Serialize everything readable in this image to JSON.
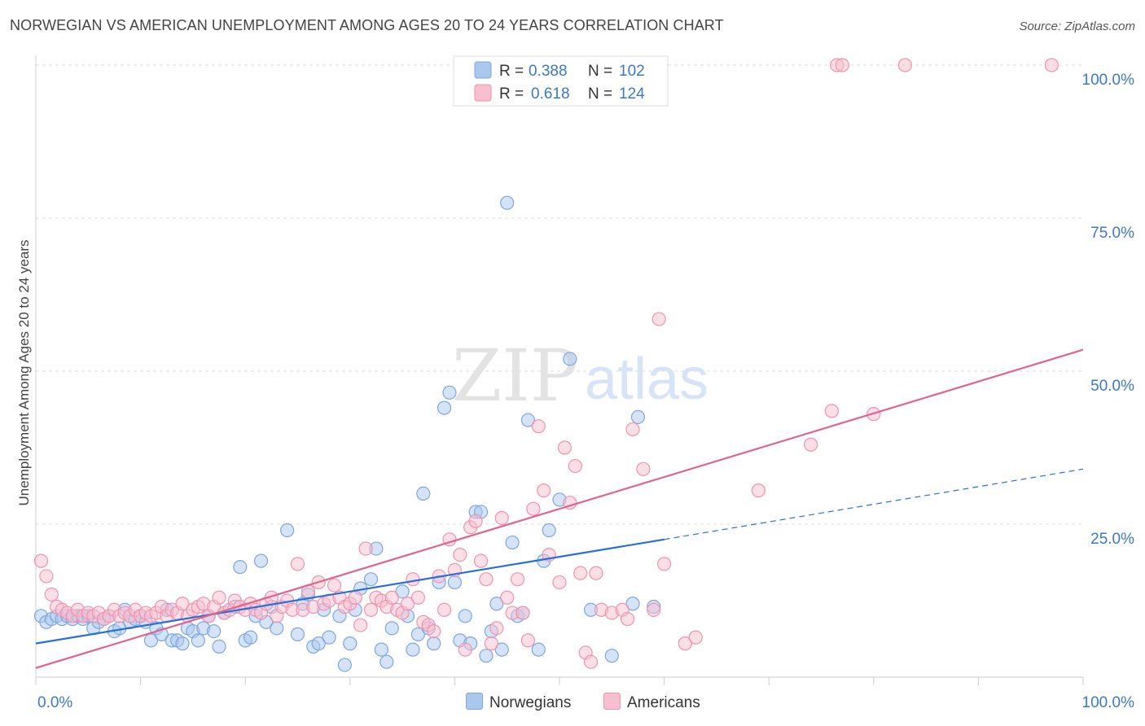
{
  "title": "NORWEGIAN VS AMERICAN UNEMPLOYMENT AMONG AGES 20 TO 24 YEARS CORRELATION CHART",
  "source": "Source: ZipAtlas.com",
  "watermark": {
    "zip": "ZIP",
    "atlas": "atlas"
  },
  "colors": {
    "norwegian_fill": "#aac8ee",
    "norwegian_stroke": "#7fa7dc",
    "norwegian_line": "#2a6fd6",
    "american_fill": "#f7bfd0",
    "american_stroke": "#ee93b0",
    "american_line": "#e0648e",
    "tick_label": "#3b78c9",
    "grid": "#dddddd"
  },
  "stats": {
    "norwegians": {
      "r_label": "R =",
      "r_value": "0.388",
      "n_label": "N =",
      "n_value": "102"
    },
    "americans": {
      "r_label": "R =",
      "r_value": "0.618",
      "n_label": "N =",
      "n_value": "124"
    }
  },
  "chart_data": {
    "type": "scatter",
    "title": "NORWEGIAN VS AMERICAN UNEMPLOYMENT AMONG AGES 20 TO 24 YEARS CORRELATION CHART",
    "xlabel": "",
    "ylabel": "Unemployment Among Ages 20 to 24 years",
    "xlim": [
      0,
      100
    ],
    "ylim": [
      0,
      102
    ],
    "x_tick_labels": [
      "0.0%",
      "100.0%"
    ],
    "y_ticks": [
      25,
      50,
      75,
      100
    ],
    "y_tick_labels": [
      "25.0%",
      "50.0%",
      "75.0%",
      "100.0%"
    ],
    "grid": true,
    "legend_position": "bottom",
    "series": [
      {
        "name": "Norwegians",
        "r": 0.388,
        "n": 102,
        "trend": {
          "x0": 0,
          "y0": 5.5,
          "x1": 60,
          "y1": 22.5,
          "dashed_to_x": 100,
          "dashed_to_y": 34
        },
        "points": [
          [
            0.5,
            10
          ],
          [
            1,
            9
          ],
          [
            1.5,
            9.5
          ],
          [
            2,
            10
          ],
          [
            2.5,
            9.5
          ],
          [
            3,
            10
          ],
          [
            3.5,
            9.5
          ],
          [
            4,
            10
          ],
          [
            4.5,
            9.5
          ],
          [
            5,
            10
          ],
          [
            5.5,
            8
          ],
          [
            6,
            9
          ],
          [
            6.5,
            9.5
          ],
          [
            7,
            10
          ],
          [
            7.5,
            7.5
          ],
          [
            8,
            8
          ],
          [
            8.5,
            11
          ],
          [
            9,
            9
          ],
          [
            9.5,
            9.5
          ],
          [
            10,
            10
          ],
          [
            10.5,
            9
          ],
          [
            11,
            6
          ],
          [
            11.5,
            8
          ],
          [
            12,
            7
          ],
          [
            12.5,
            11
          ],
          [
            13,
            6
          ],
          [
            13.5,
            6
          ],
          [
            14,
            5.5
          ],
          [
            14.5,
            8
          ],
          [
            15,
            7.5
          ],
          [
            15.5,
            6
          ],
          [
            16,
            8
          ],
          [
            16.5,
            10
          ],
          [
            17,
            7.5
          ],
          [
            17.5,
            5
          ],
          [
            18,
            10.5
          ],
          [
            19,
            11.5
          ],
          [
            19.5,
            18
          ],
          [
            20,
            6
          ],
          [
            20.5,
            6.5
          ],
          [
            21,
            10
          ],
          [
            21.5,
            19
          ],
          [
            22,
            9
          ],
          [
            22.5,
            11.5
          ],
          [
            23,
            8
          ],
          [
            24,
            24
          ],
          [
            25,
            7
          ],
          [
            25.5,
            12
          ],
          [
            26,
            13.5
          ],
          [
            26.5,
            5
          ],
          [
            27,
            5.5
          ],
          [
            27.5,
            11
          ],
          [
            28,
            6.5
          ],
          [
            29,
            10
          ],
          [
            29.5,
            2
          ],
          [
            30,
            5.5
          ],
          [
            30.5,
            11
          ],
          [
            31,
            14.5
          ],
          [
            32,
            16
          ],
          [
            32.5,
            21
          ],
          [
            33,
            4.5
          ],
          [
            33.5,
            2.5
          ],
          [
            34,
            8
          ],
          [
            35,
            14
          ],
          [
            35.5,
            10
          ],
          [
            36,
            4.5
          ],
          [
            36.5,
            7
          ],
          [
            37,
            30
          ],
          [
            37.5,
            8
          ],
          [
            38,
            5.5
          ],
          [
            38.5,
            15.5
          ],
          [
            39,
            44
          ],
          [
            39.5,
            46.5
          ],
          [
            40,
            15.5
          ],
          [
            40.5,
            6
          ],
          [
            41,
            10
          ],
          [
            41.5,
            5.5
          ],
          [
            42,
            27
          ],
          [
            42.5,
            27
          ],
          [
            43,
            3.5
          ],
          [
            43.5,
            7.5
          ],
          [
            44,
            12
          ],
          [
            44.5,
            4.5
          ],
          [
            45,
            77.5
          ],
          [
            45.5,
            22
          ],
          [
            46,
            10
          ],
          [
            46.5,
            10.5
          ],
          [
            47,
            42
          ],
          [
            48,
            4.5
          ],
          [
            48.5,
            19
          ],
          [
            49,
            24
          ],
          [
            50,
            29
          ],
          [
            51,
            52
          ],
          [
            53,
            11
          ],
          [
            55,
            3.5
          ],
          [
            57,
            12
          ],
          [
            57.5,
            42.5
          ],
          [
            59,
            11.5
          ]
        ]
      },
      {
        "name": "Americans",
        "r": 0.618,
        "n": 124,
        "trend": {
          "x0": 0,
          "y0": 1.5,
          "x1": 100,
          "y1": 53.5
        },
        "points": [
          [
            0.5,
            19
          ],
          [
            1,
            16.5
          ],
          [
            1.5,
            13.5
          ],
          [
            2,
            11.5
          ],
          [
            2.5,
            11
          ],
          [
            3,
            10.5
          ],
          [
            3.5,
            10
          ],
          [
            4,
            11
          ],
          [
            4.5,
            10
          ],
          [
            5,
            10.5
          ],
          [
            5.5,
            10
          ],
          [
            6,
            10.5
          ],
          [
            6.5,
            9.5
          ],
          [
            7,
            10
          ],
          [
            7.5,
            11
          ],
          [
            8,
            10
          ],
          [
            8.5,
            10.5
          ],
          [
            9,
            10
          ],
          [
            9.5,
            11
          ],
          [
            10,
            10
          ],
          [
            10.5,
            10.5
          ],
          [
            11,
            10
          ],
          [
            11.5,
            10.5
          ],
          [
            12,
            11.5
          ],
          [
            12.5,
            10
          ],
          [
            13,
            11
          ],
          [
            13.5,
            10.5
          ],
          [
            14,
            12
          ],
          [
            14.5,
            10
          ],
          [
            15,
            11
          ],
          [
            15.5,
            11.5
          ],
          [
            16,
            12
          ],
          [
            16.5,
            10
          ],
          [
            17,
            11.5
          ],
          [
            17.5,
            13
          ],
          [
            18,
            10.5
          ],
          [
            18.5,
            11
          ],
          [
            19,
            12.5
          ],
          [
            19.5,
            11.5
          ],
          [
            20,
            11
          ],
          [
            20.5,
            12
          ],
          [
            21,
            11
          ],
          [
            21.5,
            10.5
          ],
          [
            22,
            12
          ],
          [
            22.5,
            13
          ],
          [
            23,
            10
          ],
          [
            23.5,
            11.5
          ],
          [
            24,
            12.5
          ],
          [
            24.5,
            11
          ],
          [
            25,
            18.5
          ],
          [
            25.5,
            11
          ],
          [
            26,
            14
          ],
          [
            26.5,
            11.5
          ],
          [
            27,
            15.5
          ],
          [
            27.5,
            12
          ],
          [
            28,
            12.5
          ],
          [
            28.5,
            15
          ],
          [
            29,
            13
          ],
          [
            29.5,
            11.5
          ],
          [
            30,
            12
          ],
          [
            30.5,
            13
          ],
          [
            31,
            8.5
          ],
          [
            31.5,
            21
          ],
          [
            32,
            11
          ],
          [
            32.5,
            13
          ],
          [
            33,
            12.5
          ],
          [
            33.5,
            11.5
          ],
          [
            34,
            13
          ],
          [
            34.5,
            11
          ],
          [
            35,
            10.5
          ],
          [
            35.5,
            12
          ],
          [
            36,
            16
          ],
          [
            36.5,
            13
          ],
          [
            37,
            9
          ],
          [
            37.5,
            8.5
          ],
          [
            38,
            7.5
          ],
          [
            38.5,
            16.5
          ],
          [
            39,
            11
          ],
          [
            39.5,
            22.5
          ],
          [
            40,
            17.5
          ],
          [
            40.5,
            20
          ],
          [
            41,
            4.5
          ],
          [
            41.5,
            24.5
          ],
          [
            42,
            25.5
          ],
          [
            42.5,
            19
          ],
          [
            43,
            16
          ],
          [
            43.5,
            5.5
          ],
          [
            44,
            8
          ],
          [
            44.5,
            26
          ],
          [
            45,
            13
          ],
          [
            45.5,
            10.5
          ],
          [
            46,
            16
          ],
          [
            46.5,
            10.5
          ],
          [
            47,
            6
          ],
          [
            47.5,
            27.5
          ],
          [
            48,
            41
          ],
          [
            48.5,
            30.5
          ],
          [
            49,
            20
          ],
          [
            50,
            15.5
          ],
          [
            50.5,
            37.5
          ],
          [
            51,
            28.5
          ],
          [
            51.5,
            34.5
          ],
          [
            52,
            17
          ],
          [
            52.5,
            4
          ],
          [
            53,
            2.5
          ],
          [
            53.5,
            17
          ],
          [
            54,
            11
          ],
          [
            55,
            10.5
          ],
          [
            56,
            11
          ],
          [
            56.5,
            9.5
          ],
          [
            57,
            40.5
          ],
          [
            58,
            34
          ],
          [
            59,
            11
          ],
          [
            59.5,
            58.5
          ],
          [
            60,
            18.5
          ],
          [
            62,
            5.5
          ],
          [
            63,
            6.5
          ],
          [
            69,
            30.5
          ],
          [
            74,
            38
          ],
          [
            76,
            43.5
          ],
          [
            76.5,
            100
          ],
          [
            77,
            100
          ],
          [
            80,
            43
          ],
          [
            83,
            100
          ],
          [
            97,
            100
          ]
        ]
      }
    ]
  }
}
